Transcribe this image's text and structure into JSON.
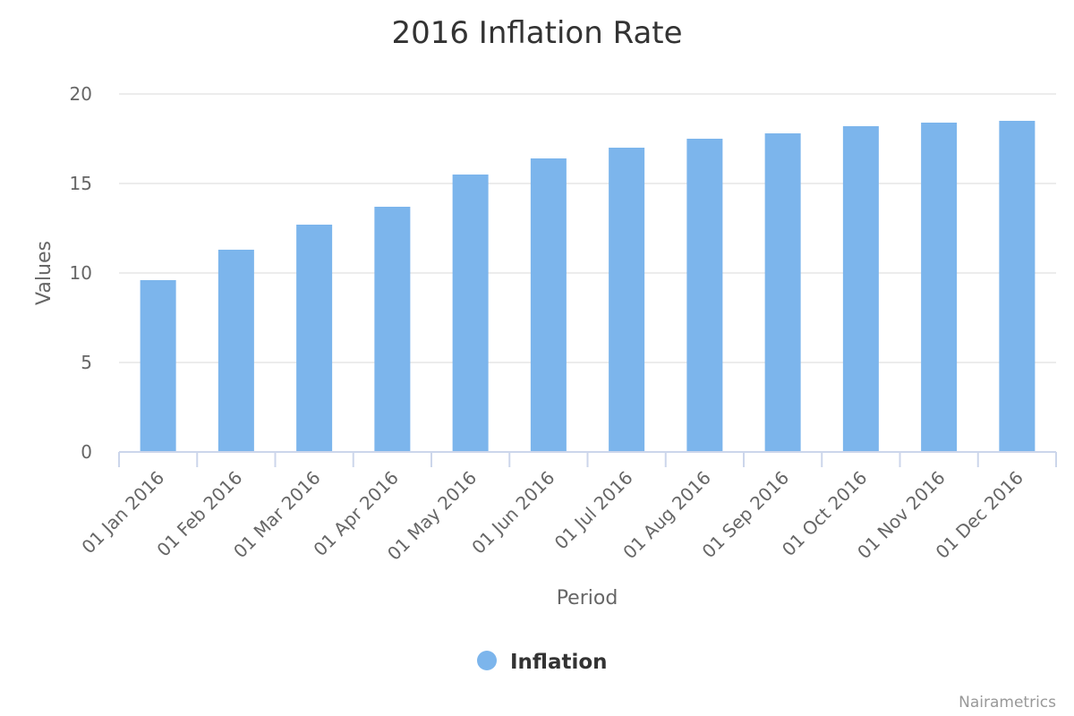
{
  "chart_data": {
    "type": "bar",
    "title": "2016 Inflation Rate",
    "xlabel": "Period",
    "ylabel": "Values",
    "categories": [
      "01 Jan 2016",
      "01 Feb 2016",
      "01 Mar 2016",
      "01 Apr 2016",
      "01 May 2016",
      "01 Jun 2016",
      "01 Jul 2016",
      "01 Aug 2016",
      "01 Sep 2016",
      "01 Oct 2016",
      "01 Nov 2016",
      "01 Dec 2016"
    ],
    "series": [
      {
        "name": "Inflation",
        "color": "#7cb5ec",
        "values": [
          9.6,
          11.3,
          12.7,
          13.7,
          15.5,
          16.4,
          17.0,
          17.5,
          17.8,
          18.2,
          18.4,
          18.5
        ]
      }
    ],
    "ylim": [
      0,
      20
    ],
    "yticks": [
      0,
      5,
      10,
      15,
      20
    ],
    "grid": true,
    "legend_position": "bottom-center",
    "credits": "Nairametrics"
  }
}
